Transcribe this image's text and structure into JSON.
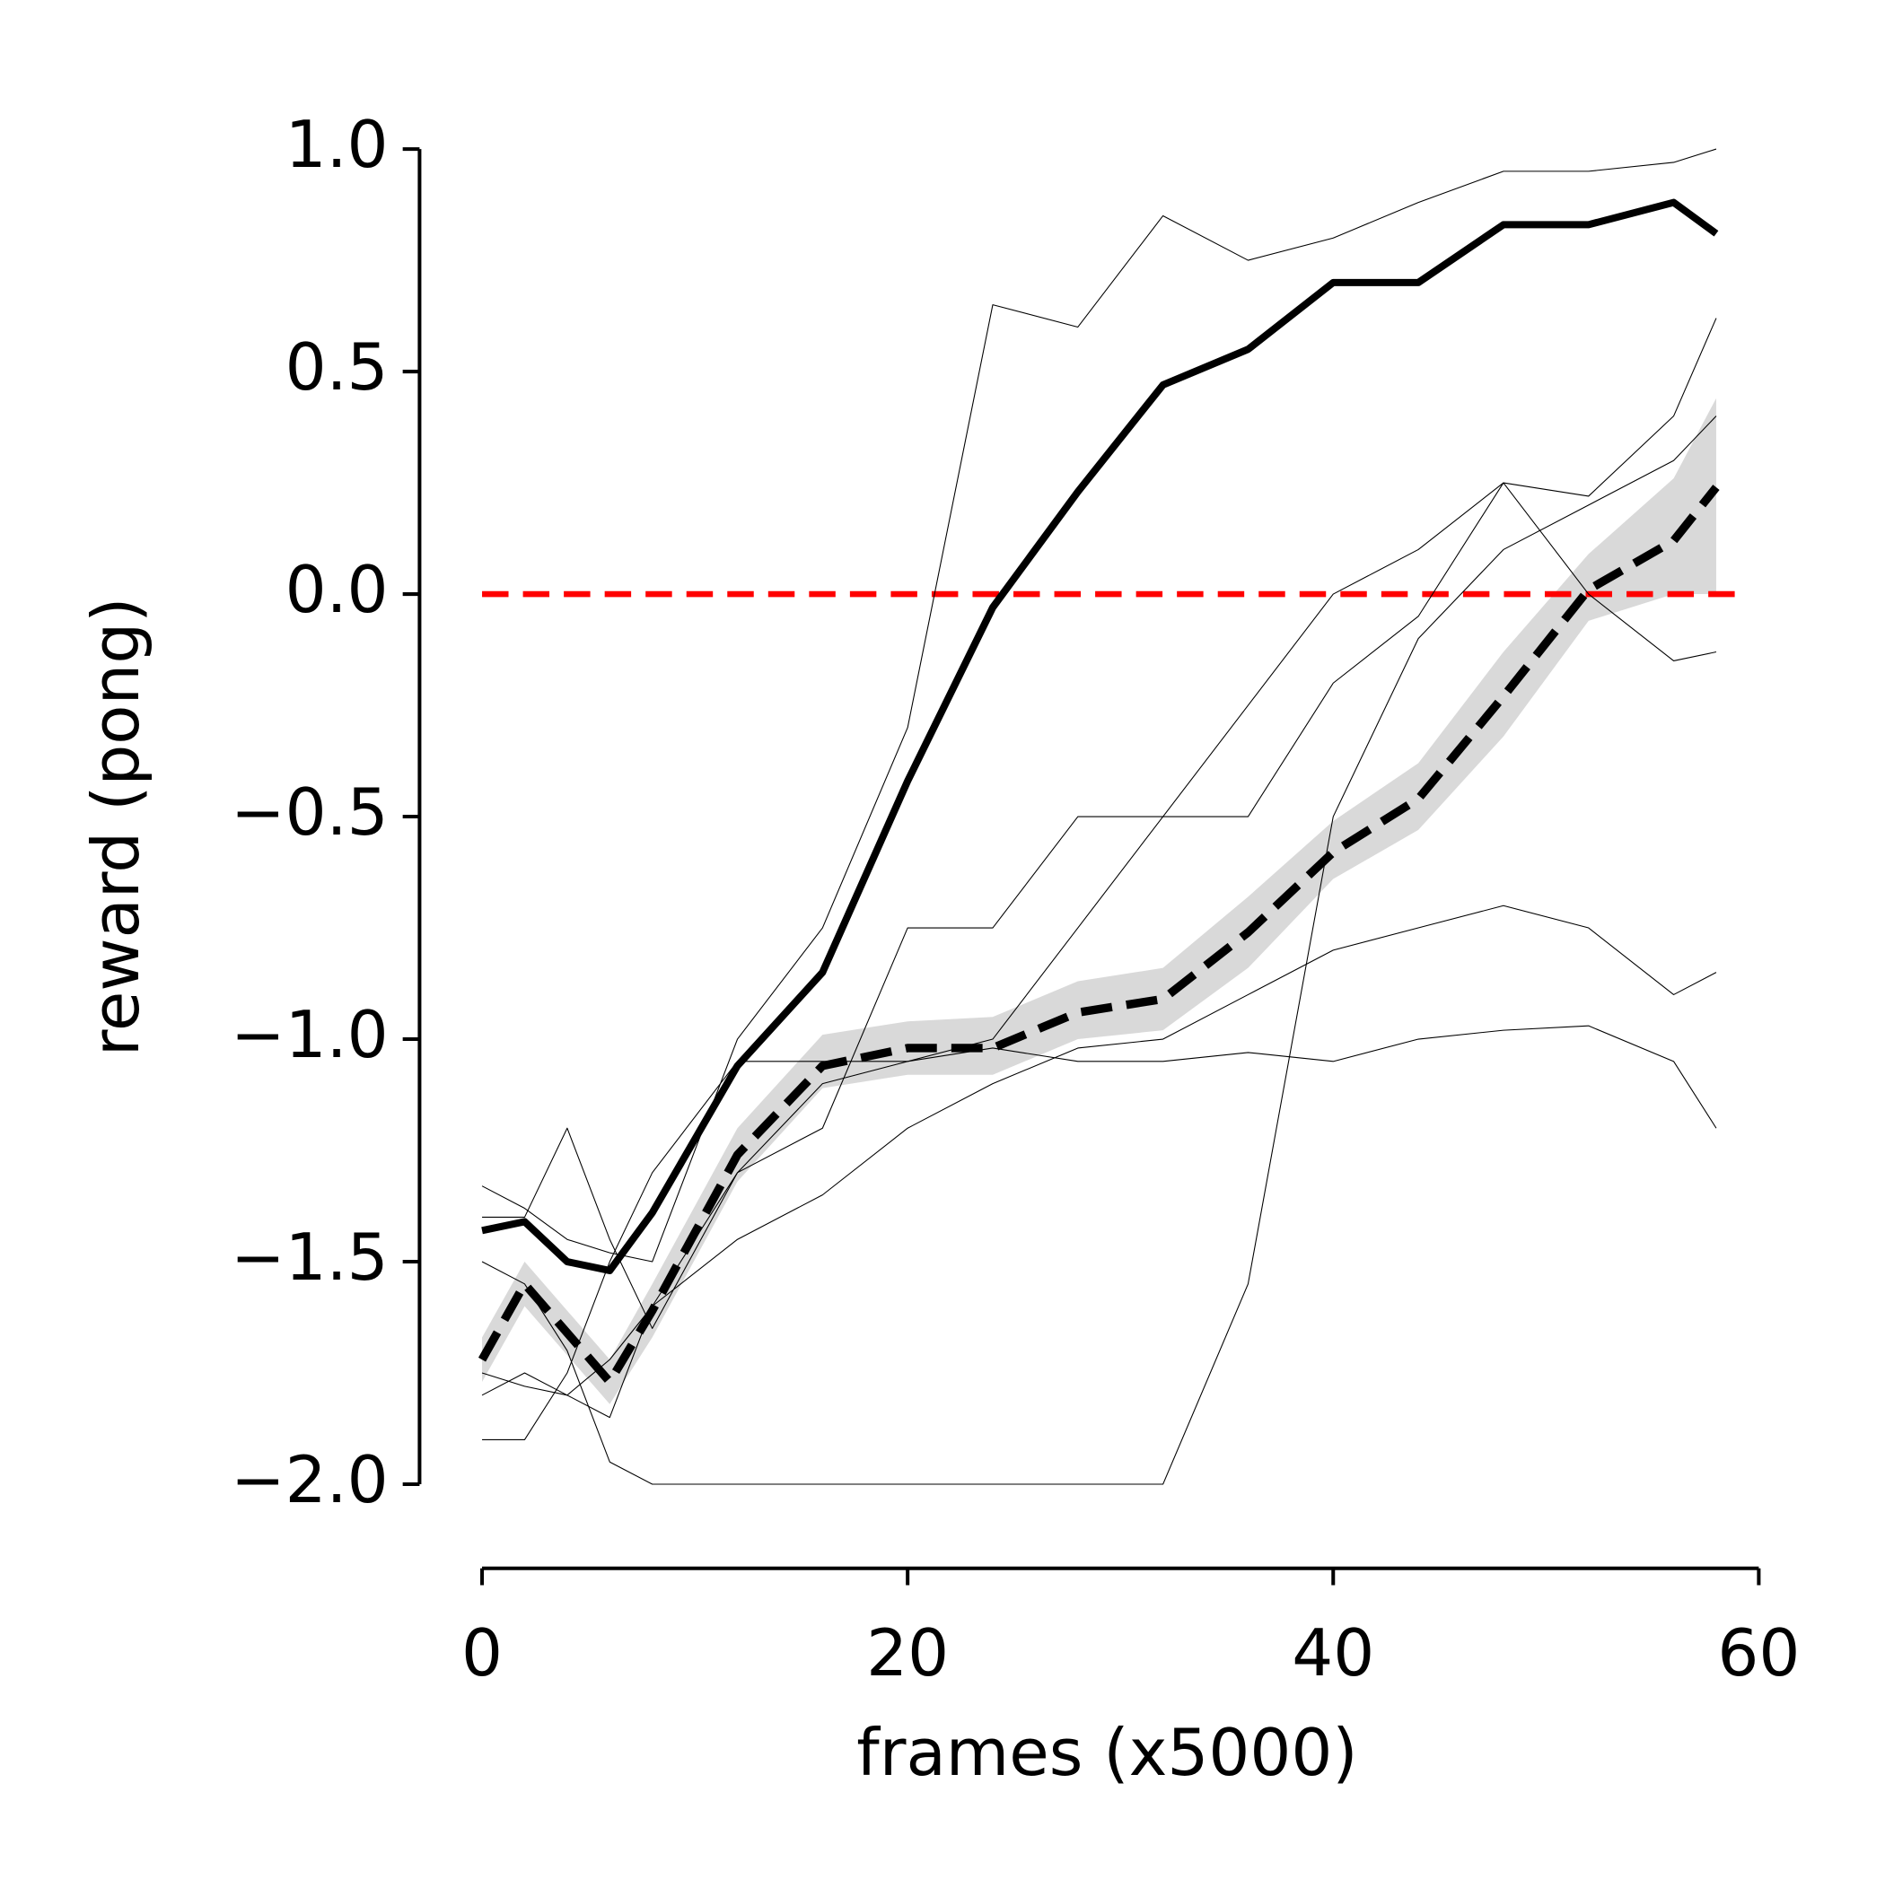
{
  "chart_data": {
    "type": "line",
    "xlabel": "frames (x5000)",
    "ylabel": "reward (pong)",
    "x": [
      0,
      2,
      4,
      6,
      8,
      12,
      16,
      20,
      24,
      28,
      32,
      36,
      40,
      44,
      48,
      52,
      56,
      58
    ],
    "xlim": [
      0,
      60
    ],
    "xticks": [
      0,
      20,
      40,
      60
    ],
    "ylim": [
      -2,
      1
    ],
    "yticks": [
      {
        "value": 1,
        "label": "1.0"
      },
      0.5,
      {
        "value": 0,
        "label": "0.0"
      },
      {
        "value": -0.5,
        "label": "−0.5"
      },
      {
        "value": -1,
        "label": "−1.0"
      },
      {
        "value": -1.5,
        "label": "−1.5"
      },
      {
        "value": -2,
        "label": "−2.0"
      }
    ],
    "hline": {
      "y": 0,
      "color": "#ff0000"
    },
    "band": {
      "color": "#d9d9d9",
      "lower": [
        -1.77,
        -1.6,
        -1.71,
        -1.82,
        -1.67,
        -1.32,
        -1.11,
        -1.08,
        -1.08,
        -1.0,
        -0.98,
        -0.84,
        -0.64,
        -0.53,
        -0.32,
        -0.06,
        0.0,
        0.0
      ],
      "upper": [
        -1.67,
        -1.5,
        -1.61,
        -1.72,
        -1.55,
        -1.2,
        -0.99,
        -0.96,
        -0.95,
        -0.87,
        -0.84,
        -0.68,
        -0.51,
        -0.38,
        -0.13,
        0.09,
        0.26,
        0.44
      ]
    },
    "series": [
      {
        "color": "#000000",
        "linestyle": "solid",
        "linewidth": 0.8,
        "values": [
          -1.33,
          -1.38,
          -1.45,
          -1.48,
          -1.5,
          -1.0,
          -0.75,
          -0.3,
          0.65,
          0.6,
          0.85,
          0.75,
          0.8,
          0.88,
          0.95,
          0.95,
          0.97,
          1.0
        ]
      },
      {
        "color": "#000000",
        "linestyle": "solid",
        "linewidth": 0.8,
        "values": [
          -1.5,
          -1.55,
          -1.7,
          -1.95,
          -2.0,
          -2.0,
          -2.0,
          -2.0,
          -2.0,
          -2.0,
          -2.0,
          -1.55,
          -0.5,
          -0.1,
          0.1,
          0.2,
          0.3,
          0.4
        ]
      },
      {
        "color": "#000000",
        "linestyle": "solid",
        "linewidth": 0.8,
        "values": [
          -1.75,
          -1.78,
          -1.8,
          -1.72,
          -1.6,
          -1.3,
          -1.1,
          -1.05,
          -1.0,
          -0.75,
          -0.5,
          -0.25,
          0.0,
          0.1,
          0.25,
          0.0,
          -0.15,
          -0.13
        ]
      },
      {
        "color": "#000000",
        "linestyle": "solid",
        "linewidth": 0.8,
        "values": [
          -1.9,
          -1.9,
          -1.75,
          -1.5,
          -1.3,
          -1.05,
          -1.05,
          -1.05,
          -1.02,
          -1.05,
          -1.05,
          -1.03,
          -1.05,
          -1.0,
          -0.98,
          -0.97,
          -1.05,
          -1.2
        ]
      },
      {
        "color": "#000000",
        "linestyle": "solid",
        "linewidth": 0.8,
        "values": [
          -1.4,
          -1.4,
          -1.2,
          -1.45,
          -1.65,
          -1.3,
          -1.2,
          -0.75,
          -0.75,
          -0.5,
          -0.5,
          -0.5,
          -0.2,
          -0.05,
          0.25,
          0.22,
          0.4,
          0.62
        ]
      },
      {
        "color": "#000000",
        "linestyle": "solid",
        "linewidth": 0.8,
        "values": [
          -1.8,
          -1.75,
          -1.8,
          -1.85,
          -1.6,
          -1.45,
          -1.35,
          -1.2,
          -1.1,
          -1.02,
          -1.0,
          -0.9,
          -0.8,
          -0.75,
          -0.7,
          -0.75,
          -0.9,
          -0.85
        ]
      },
      {
        "color": "#000000",
        "linestyle": "solid",
        "linewidth": 6,
        "values": [
          -1.43,
          -1.41,
          -1.5,
          -1.52,
          -1.39,
          -1.06,
          -0.85,
          -0.42,
          -0.03,
          0.23,
          0.47,
          0.55,
          0.7,
          0.7,
          0.83,
          0.83,
          0.88,
          0.81
        ]
      },
      {
        "color": "#000000",
        "linestyle": "dashed",
        "linewidth": 7,
        "values": [
          -1.72,
          -1.55,
          -1.66,
          -1.77,
          -1.61,
          -1.26,
          -1.06,
          -1.02,
          -1.02,
          -0.94,
          -0.91,
          -0.76,
          -0.58,
          -0.46,
          -0.23,
          0.01,
          0.12,
          0.24
        ]
      }
    ]
  }
}
